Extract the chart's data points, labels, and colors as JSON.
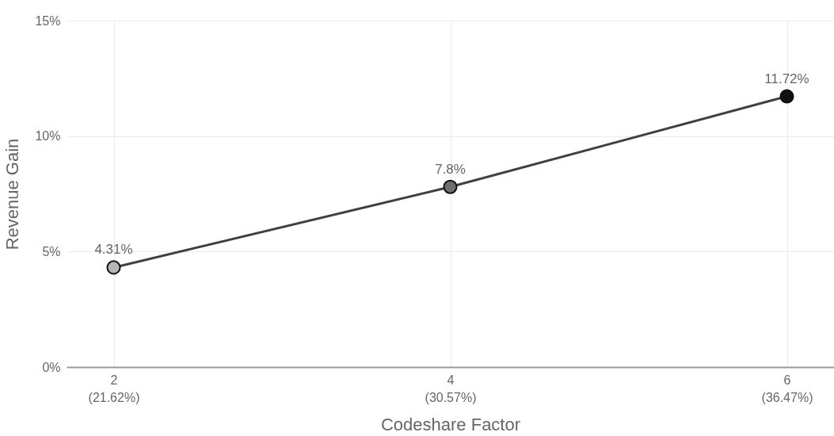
{
  "chart_data": {
    "type": "line",
    "xlabel": "Codeshare Factor",
    "ylabel": "Revenue Gain",
    "categories": [
      "2\n(21.62%)",
      "4\n(30.57%)",
      "6\n(36.47%)"
    ],
    "values": [
      4.31,
      7.8,
      11.72
    ],
    "color": "#404040",
    "colors": [
      "#b5b5b5",
      "#6e6e6e",
      "#111111"
    ],
    "value_labels": [
      "4.31%",
      "7.8%",
      "11.72%"
    ],
    "ylim": [
      0,
      15
    ],
    "yticks": [
      {
        "value": 0,
        "label": "0%"
      },
      {
        "value": 5,
        "label": "5%"
      },
      {
        "value": 10,
        "label": "10%"
      },
      {
        "value": 15,
        "label": "15%"
      }
    ],
    "grid": true,
    "marker": "circle",
    "line_style": "solid",
    "legend": false
  }
}
